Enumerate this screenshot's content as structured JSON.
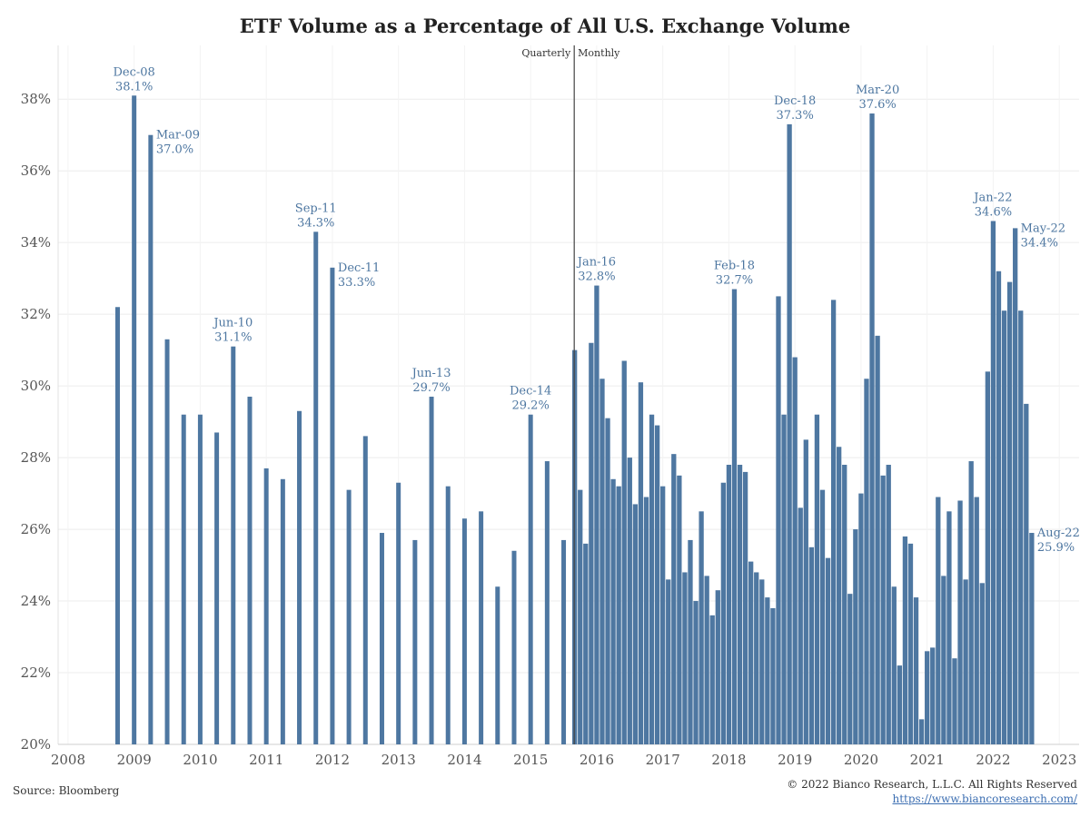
{
  "chart_data": {
    "type": "bar",
    "title": "ETF Volume as a Percentage of All U.S. Exchange Volume",
    "xlabel": "",
    "ylabel": "",
    "y_unit": "%",
    "ylim": [
      20,
      39.5
    ],
    "yticks": [
      20,
      22,
      24,
      26,
      28,
      30,
      32,
      34,
      36,
      38
    ],
    "ytick_labels": [
      "20%",
      "22%",
      "24%",
      "26%",
      "28%",
      "30%",
      "32%",
      "34%",
      "36%",
      "38%"
    ],
    "x_range": [
      2007.85,
      2023.3
    ],
    "xticks": [
      2008,
      2009,
      2010,
      2011,
      2012,
      2013,
      2014,
      2015,
      2016,
      2017,
      2018,
      2019,
      2020,
      2021,
      2022,
      2023
    ],
    "xtick_labels": [
      "2008",
      "2009",
      "2010",
      "2011",
      "2012",
      "2013",
      "2014",
      "2015",
      "2016",
      "2017",
      "2018",
      "2019",
      "2020",
      "2021",
      "2022",
      "2023"
    ],
    "grid": true,
    "bar_color": "#4e77a1",
    "annotation_color": "#4e77a1",
    "divider": {
      "x": 2015.66,
      "left_label": "Quarterly",
      "right_label": "Monthly"
    },
    "quarterly": {
      "x": [
        2008.75,
        2009.0,
        2009.25,
        2009.5,
        2009.75,
        2010.0,
        2010.25,
        2010.5,
        2010.75,
        2011.0,
        2011.25,
        2011.5,
        2011.75,
        2012.0,
        2012.25,
        2012.5,
        2012.75,
        2013.0,
        2013.25,
        2013.5,
        2013.75,
        2014.0,
        2014.25,
        2014.5,
        2014.75,
        2015.0,
        2015.25,
        2015.5
      ],
      "values": [
        32.2,
        38.1,
        37.0,
        31.3,
        29.2,
        29.2,
        28.7,
        31.1,
        29.7,
        27.7,
        27.4,
        29.3,
        34.3,
        33.3,
        27.1,
        28.6,
        25.9,
        27.3,
        25.7,
        29.7,
        27.2,
        26.3,
        26.5,
        24.4,
        25.4,
        29.2,
        27.9,
        25.7
      ]
    },
    "monthly": {
      "start_year": 2015,
      "start_month": 9,
      "values": [
        31.0,
        27.1,
        25.6,
        31.2,
        32.8,
        30.2,
        29.1,
        27.4,
        27.2,
        30.7,
        28.0,
        26.7,
        30.1,
        26.9,
        29.2,
        28.9,
        27.2,
        24.6,
        28.1,
        27.5,
        24.8,
        25.7,
        24.0,
        26.5,
        24.7,
        23.6,
        24.3,
        27.3,
        27.8,
        32.7,
        27.8,
        27.6,
        25.1,
        24.8,
        24.6,
        24.1,
        23.8,
        32.5,
        29.2,
        37.3,
        30.8,
        26.6,
        28.5,
        25.5,
        29.2,
        27.1,
        25.2,
        32.4,
        28.3,
        27.8,
        24.2,
        26.0,
        27.0,
        30.2,
        37.6,
        31.4,
        27.5,
        27.8,
        24.4,
        22.2,
        25.8,
        25.6,
        24.1,
        20.7,
        22.6,
        22.7,
        26.9,
        24.7,
        26.5,
        22.4,
        26.8,
        24.6,
        27.9,
        26.9,
        24.5,
        30.4,
        34.6,
        33.2,
        32.1,
        32.9,
        34.4,
        32.1,
        29.5,
        25.9
      ]
    },
    "annotations": [
      {
        "label": "Dec-08",
        "value": "38.1%",
        "x": 2009.0,
        "y": 38.1,
        "anchor": "center"
      },
      {
        "label": "Mar-09",
        "value": "37.0%",
        "x": 2009.25,
        "y": 37.0,
        "anchor": "right"
      },
      {
        "label": "Jun-10",
        "value": "31.1%",
        "x": 2010.5,
        "y": 31.1,
        "anchor": "center"
      },
      {
        "label": "Sep-11",
        "value": "34.3%",
        "x": 2011.75,
        "y": 34.3,
        "anchor": "center"
      },
      {
        "label": "Dec-11",
        "value": "33.3%",
        "x": 2012.0,
        "y": 33.3,
        "anchor": "right"
      },
      {
        "label": "Jun-13",
        "value": "29.7%",
        "x": 2013.5,
        "y": 29.7,
        "anchor": "center"
      },
      {
        "label": "Dec-14",
        "value": "29.2%",
        "x": 2015.0,
        "y": 29.2,
        "anchor": "center"
      },
      {
        "label": "Jan-16",
        "value": "32.8%",
        "x": 2016.0,
        "y": 32.8,
        "anchor": "center"
      },
      {
        "label": "Feb-18",
        "value": "32.7%",
        "x": 2018.083,
        "y": 32.7,
        "anchor": "center"
      },
      {
        "label": "Dec-18",
        "value": "37.3%",
        "x": 2019.0,
        "y": 37.3,
        "anchor": "center"
      },
      {
        "label": "Mar-20",
        "value": "37.6%",
        "x": 2020.25,
        "y": 37.6,
        "anchor": "center"
      },
      {
        "label": "Jan-22",
        "value": "34.6%",
        "x": 2022.0,
        "y": 34.6,
        "anchor": "center"
      },
      {
        "label": "May-22",
        "value": "34.4%",
        "x": 2022.333,
        "y": 34.4,
        "anchor": "right"
      },
      {
        "label": "Aug-22",
        "value": "25.9%",
        "x": 2022.583,
        "y": 25.9,
        "anchor": "right"
      }
    ]
  },
  "footer": {
    "source": "Source: Bloomberg",
    "copyright": "© 2022 Bianco Research, L.L.C. All Rights Reserved",
    "link": "https://www.biancoresearch.com/"
  }
}
